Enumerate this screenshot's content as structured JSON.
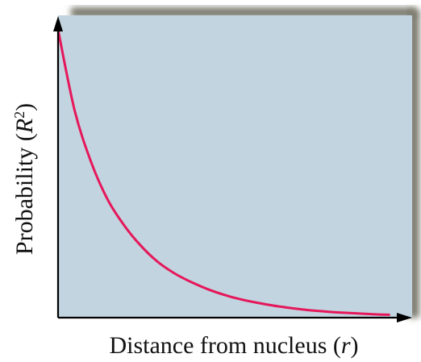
{
  "chart_data": {
    "type": "line",
    "title": "",
    "xlabel": "Distance from nucleus (r)",
    "ylabel": "Probability (R²)",
    "xlabel_parts": {
      "before": "Distance from nucleus (",
      "variable": "r",
      "after": ")"
    },
    "ylabel_parts": {
      "before": "Probability (",
      "variable": "R",
      "superscript": "2",
      "after": ")"
    },
    "series": [
      {
        "color": "#e5175a",
        "x": [
          0.0,
          0.05,
          0.1,
          0.15,
          0.2,
          0.25,
          0.3,
          0.35,
          0.4,
          0.45,
          0.5,
          0.55,
          0.6,
          0.65,
          0.7,
          0.75,
          0.8,
          0.85,
          0.9,
          0.95,
          1.0
        ],
        "y": [
          1.0,
          0.72,
          0.54,
          0.41,
          0.32,
          0.25,
          0.195,
          0.155,
          0.125,
          0.1,
          0.08,
          0.064,
          0.052,
          0.042,
          0.034,
          0.027,
          0.022,
          0.018,
          0.015,
          0.012,
          0.01
        ]
      }
    ],
    "xlim": [
      0,
      1.07
    ],
    "ylim": [
      0,
      1.05
    ],
    "grid": false,
    "legend": false,
    "tick_labels": false,
    "background_color": "#c2d4df",
    "shadow_color": "#7b7b70"
  }
}
